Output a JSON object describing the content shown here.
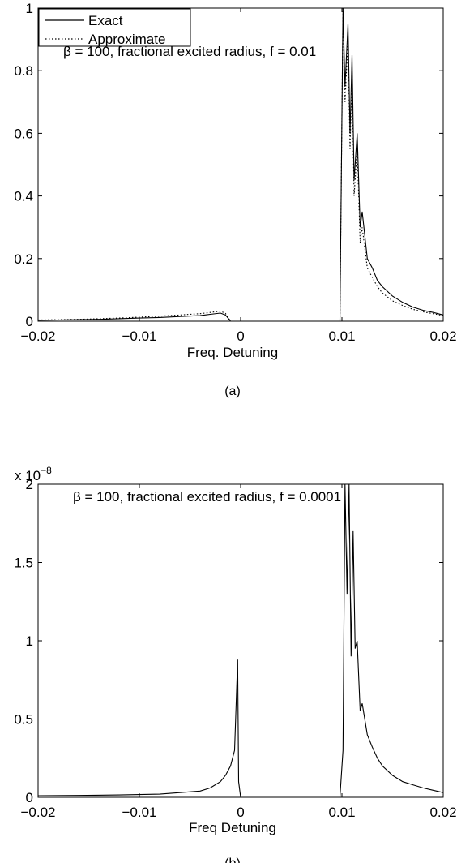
{
  "chart_data": [
    {
      "type": "line",
      "panel_caption": "(a)",
      "xlabel": "Freq. Detuning",
      "ylabel": "",
      "xlim": [
        -0.02,
        0.02
      ],
      "ylim": [
        0,
        1
      ],
      "x_ticks": [
        -0.02,
        -0.01,
        0,
        0.01,
        0.02
      ],
      "x_tick_labels": [
        "−0.02",
        "−0.01",
        "0",
        "0.01",
        "0.02"
      ],
      "y_ticks": [
        0,
        0.2,
        0.4,
        0.6,
        0.8,
        1
      ],
      "y_tick_labels": [
        "0",
        "0.2",
        "0.4",
        "0.6",
        "0.8",
        "1"
      ],
      "annotation": "β = 100, fractional excited radius, f = 0.01",
      "legend": {
        "placement": "top-left",
        "entries": [
          "Exact",
          "Approximate"
        ]
      },
      "series": [
        {
          "name": "Exact",
          "style": "solid",
          "x": [
            -0.02,
            -0.018,
            -0.016,
            -0.014,
            -0.012,
            -0.01,
            -0.008,
            -0.006,
            -0.004,
            -0.003,
            -0.002,
            -0.0015,
            -0.001,
            0.0,
            0.005,
            0.0098,
            0.0101,
            0.0103,
            0.0106,
            0.0108,
            0.011,
            0.0112,
            0.0115,
            0.0118,
            0.012,
            0.0125,
            0.013,
            0.0135,
            0.014,
            0.015,
            0.016,
            0.017,
            0.018,
            0.019,
            0.02
          ],
          "y": [
            0.003,
            0.004,
            0.005,
            0.006,
            0.008,
            0.01,
            0.012,
            0.015,
            0.018,
            0.022,
            0.026,
            0.02,
            0.0,
            0.0,
            0.0,
            0.0,
            1.0,
            0.75,
            0.95,
            0.6,
            0.85,
            0.45,
            0.6,
            0.3,
            0.35,
            0.2,
            0.17,
            0.13,
            0.11,
            0.08,
            0.06,
            0.045,
            0.035,
            0.028,
            0.02
          ]
        },
        {
          "name": "Approximate",
          "style": "dotted",
          "x": [
            -0.02,
            -0.018,
            -0.016,
            -0.014,
            -0.012,
            -0.01,
            -0.008,
            -0.006,
            -0.004,
            -0.003,
            -0.002,
            -0.0015,
            -0.001,
            0.0,
            0.005,
            0.0098,
            0.0101,
            0.0103,
            0.0106,
            0.0108,
            0.011,
            0.0112,
            0.0115,
            0.0118,
            0.012,
            0.0125,
            0.013,
            0.0135,
            0.014,
            0.015,
            0.016,
            0.017,
            0.018,
            0.019,
            0.02
          ],
          "y": [
            0.004,
            0.005,
            0.006,
            0.008,
            0.01,
            0.013,
            0.016,
            0.02,
            0.024,
            0.028,
            0.032,
            0.025,
            0.0,
            0.0,
            0.0,
            0.0,
            1.0,
            0.7,
            0.9,
            0.55,
            0.8,
            0.4,
            0.55,
            0.25,
            0.3,
            0.17,
            0.14,
            0.11,
            0.09,
            0.065,
            0.05,
            0.038,
            0.03,
            0.024,
            0.018
          ]
        }
      ]
    },
    {
      "type": "line",
      "panel_caption": "(b)",
      "xlabel": "Freq Detuning",
      "ylabel": "",
      "xlim": [
        -0.02,
        0.02
      ],
      "ylim": [
        0,
        2
      ],
      "y_multiplier": "x 10",
      "y_multiplier_exp": "−8",
      "x_ticks": [
        -0.02,
        -0.01,
        0,
        0.01,
        0.02
      ],
      "x_tick_labels": [
        "−0.02",
        "−0.01",
        "0",
        "0.01",
        "0.02"
      ],
      "y_ticks": [
        0,
        0.5,
        1,
        1.5,
        2
      ],
      "y_tick_labels": [
        "0",
        "0.5",
        "1",
        "1.5",
        "2"
      ],
      "annotation": "β = 100, fractional excited radius, f = 0.0001",
      "series": [
        {
          "style": "solid",
          "x": [
            -0.02,
            -0.016,
            -0.012,
            -0.008,
            -0.006,
            -0.004,
            -0.003,
            -0.002,
            -0.0015,
            -0.001,
            -0.0006,
            -0.0003,
            -0.0002,
            0.0,
            0.005,
            0.0098,
            0.0101,
            0.0103,
            0.0105,
            0.0107,
            0.0109,
            0.0111,
            0.0113,
            0.0115,
            0.0118,
            0.012,
            0.0125,
            0.013,
            0.0135,
            0.014,
            0.015,
            0.016,
            0.017,
            0.018,
            0.019,
            0.02
          ],
          "y": [
            0.01,
            0.012,
            0.015,
            0.02,
            0.03,
            0.04,
            0.06,
            0.1,
            0.14,
            0.2,
            0.3,
            0.88,
            0.1,
            0.0,
            0.0,
            0.0,
            0.3,
            2.0,
            1.3,
            2.0,
            0.9,
            1.7,
            0.95,
            1.0,
            0.55,
            0.6,
            0.4,
            0.32,
            0.25,
            0.2,
            0.14,
            0.1,
            0.08,
            0.06,
            0.045,
            0.03
          ]
        }
      ]
    }
  ]
}
